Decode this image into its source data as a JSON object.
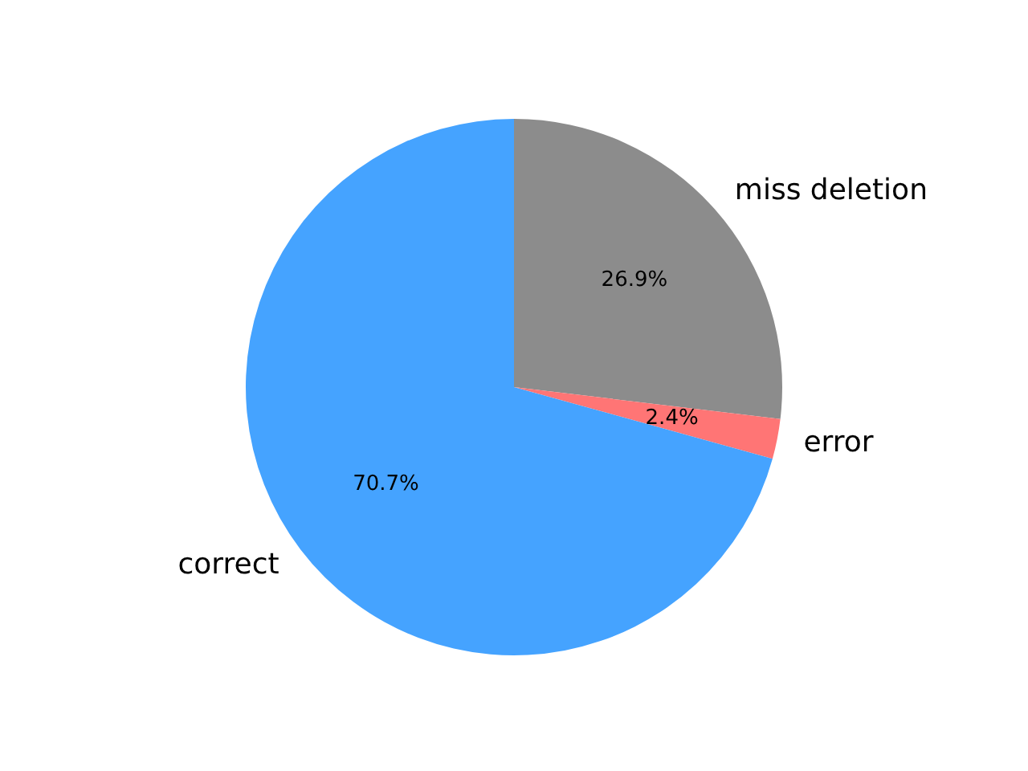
{
  "chart_data": {
    "type": "pie",
    "categories": [
      "miss deletion",
      "error",
      "correct"
    ],
    "values": [
      26.9,
      2.4,
      70.7
    ],
    "colors": [
      "#8c8c8c",
      "#ff7575",
      "#45a3ff"
    ],
    "value_labels": [
      "26.9%",
      "2.4%",
      "70.7%"
    ],
    "legend": false
  }
}
